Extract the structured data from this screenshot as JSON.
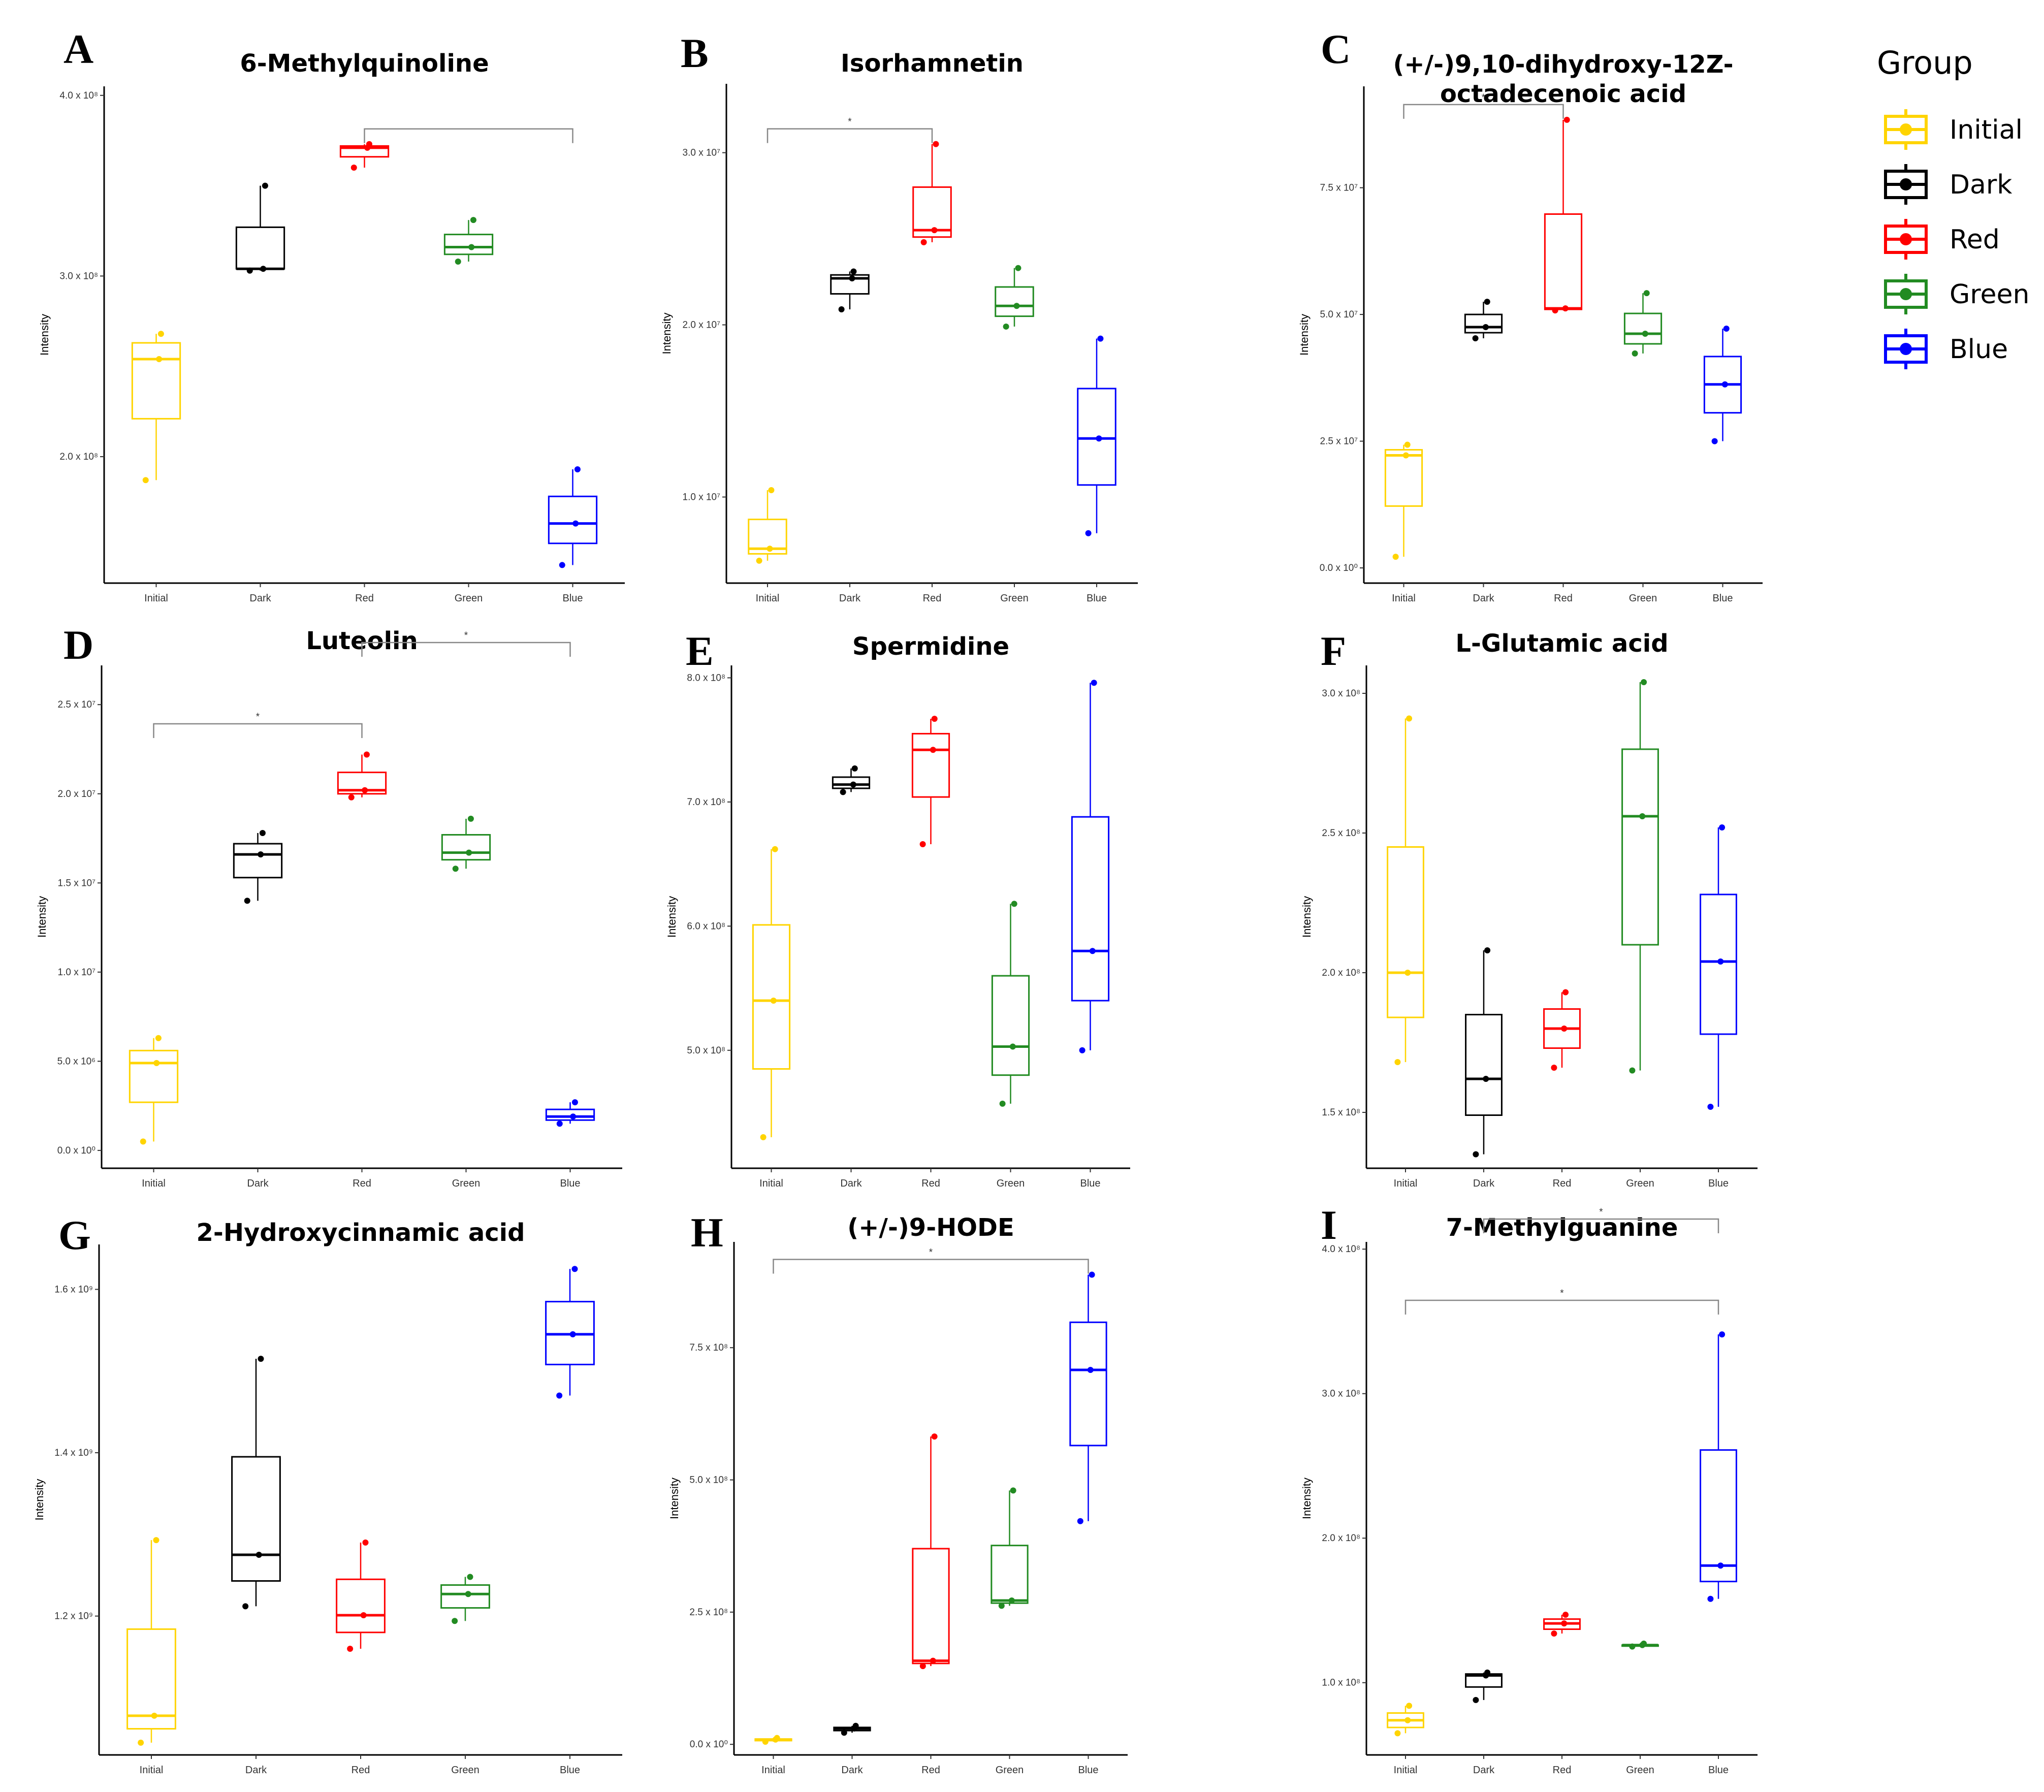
{
  "chart_data": [
    {
      "letter": "A",
      "title": [
        "6-Methylquinoline"
      ],
      "type": "box",
      "categories": [
        "Initial",
        "Dark",
        "Red",
        "Green",
        "Blue"
      ],
      "ylabel": "Intensity",
      "ylim": [
        130000000.0,
        405000000.0
      ],
      "yticks": [
        {
          "v": 200000000.0,
          "label": "2.0 x 10⁸"
        },
        {
          "v": 300000000.0,
          "label": "3.0 x 10⁸"
        },
        {
          "v": 400000000.0,
          "label": "4.0 x 10⁸"
        }
      ],
      "boxes": [
        {
          "min": 187000000.0,
          "q1": 221000000.0,
          "median": 254000000.0,
          "q3": 263000000.0,
          "max": 268000000.0,
          "points": [
            187000000.0,
            254000000.0,
            268000000.0
          ]
        },
        {
          "min": 303000000.0,
          "q1": 304000000.0,
          "median": 304000000.0,
          "q3": 327000000.0,
          "max": 350000000.0,
          "points": [
            303000000.0,
            304000000.0,
            350000000.0
          ]
        },
        {
          "min": 360000000.0,
          "q1": 366000000.0,
          "median": 371000000.0,
          "q3": 372000000.0,
          "max": 373000000.0,
          "points": [
            360000000.0,
            371000000.0,
            373000000.0
          ]
        },
        {
          "min": 308000000.0,
          "q1": 312000000.0,
          "median": 316000000.0,
          "q3": 323000000.0,
          "max": 331000000.0,
          "points": [
            308000000.0,
            316000000.0,
            331000000.0
          ]
        },
        {
          "min": 140000000.0,
          "q1": 152000000.0,
          "median": 163000000.0,
          "q3": 178000000.0,
          "max": 193000000.0,
          "points": [
            140000000.0,
            163000000.0,
            193000000.0
          ]
        }
      ],
      "sig": [
        {
          "from": 2,
          "to": 4,
          "label": "",
          "level": 0
        }
      ]
    },
    {
      "letter": "B",
      "title": [
        "Isorhamnetin"
      ],
      "type": "box",
      "categories": [
        "Initial",
        "Dark",
        "Red",
        "Green",
        "Blue"
      ],
      "ylabel": "Intensity",
      "ylim": [
        5000000.0,
        34000000.0
      ],
      "yticks": [
        {
          "v": 10000000.0,
          "label": "1.0 x 10⁷"
        },
        {
          "v": 20000000.0,
          "label": "2.0 x 10⁷"
        },
        {
          "v": 30000000.0,
          "label": "3.0 x 10⁷"
        }
      ],
      "boxes": [
        {
          "min": 6300000.0,
          "q1": 6700000.0,
          "median": 7000000.0,
          "q3": 8700000.0,
          "max": 10400000.0,
          "points": [
            6300000.0,
            7000000.0,
            10400000.0
          ]
        },
        {
          "min": 20900000.0,
          "q1": 21800000.0,
          "median": 22700000.0,
          "q3": 22900000.0,
          "max": 23100000.0,
          "points": [
            20900000.0,
            22700000.0,
            23100000.0
          ]
        },
        {
          "min": 24800000.0,
          "q1": 25100000.0,
          "median": 25500000.0,
          "q3": 28000000.0,
          "max": 30500000.0,
          "points": [
            24800000.0,
            25500000.0,
            30500000.0
          ]
        },
        {
          "min": 19900000.0,
          "q1": 20500000.0,
          "median": 21100000.0,
          "q3": 22200000.0,
          "max": 23300000.0,
          "points": [
            19900000.0,
            21100000.0,
            23300000.0
          ]
        },
        {
          "min": 7900000.0,
          "q1": 10700000.0,
          "median": 13400000.0,
          "q3": 16300000.0,
          "max": 19200000.0,
          "points": [
            7900000.0,
            13400000.0,
            19200000.0
          ]
        }
      ],
      "sig": [
        {
          "from": 0,
          "to": 2,
          "label": "*",
          "level": 0
        }
      ]
    },
    {
      "letter": "C",
      "title": [
        "(+/-)9,10-dihydroxy-12Z-",
        "octadecenoic acid"
      ],
      "type": "box",
      "categories": [
        "Initial",
        "Dark",
        "Red",
        "Green",
        "Blue"
      ],
      "ylabel": "Intensity",
      "ylim": [
        -3000000.0,
        95000000.0
      ],
      "yticks": [
        {
          "v": 0,
          "label": "0.0 x 10⁰"
        },
        {
          "v": 25000000.0,
          "label": "2.5 x 10⁷"
        },
        {
          "v": 50000000.0,
          "label": "5.0 x 10⁷"
        },
        {
          "v": 75000000.0,
          "label": "7.5 x 10⁷"
        }
      ],
      "boxes": [
        {
          "min": 2200000.0,
          "q1": 12200000.0,
          "median": 22200000.0,
          "q3": 23300000.0,
          "max": 24300000.0,
          "points": [
            2200000.0,
            22200000.0,
            24300000.0
          ]
        },
        {
          "min": 45300000.0,
          "q1": 46400000.0,
          "median": 47500000.0,
          "q3": 50000000.0,
          "max": 52500000.0,
          "points": [
            45300000.0,
            47500000.0,
            52500000.0
          ]
        },
        {
          "min": 50800000.0,
          "q1": 51000000.0,
          "median": 51200000.0,
          "q3": 69800000.0,
          "max": 88400000.0,
          "points": [
            50800000.0,
            51200000.0,
            88400000.0
          ]
        },
        {
          "min": 42300000.0,
          "q1": 44200000.0,
          "median": 46200000.0,
          "q3": 50200000.0,
          "max": 54200000.0,
          "points": [
            42300000.0,
            46200000.0,
            54200000.0
          ]
        },
        {
          "min": 25000000.0,
          "q1": 30600000.0,
          "median": 36200000.0,
          "q3": 41700000.0,
          "max": 47200000.0,
          "points": [
            25000000.0,
            36200000.0,
            47200000.0
          ]
        }
      ],
      "sig": [
        {
          "from": 0,
          "to": 2,
          "label": "*",
          "level": 0
        }
      ]
    },
    {
      "letter": "D",
      "title": [
        "Luteolin"
      ],
      "type": "box",
      "categories": [
        "Initial",
        "Dark",
        "Red",
        "Green",
        "Blue"
      ],
      "ylabel": "Intensity",
      "ylim": [
        -1000000.0,
        27200000.0
      ],
      "yticks": [
        {
          "v": 0,
          "label": "0.0 x 10⁰"
        },
        {
          "v": 5000000.0,
          "label": "5.0 x 10⁶"
        },
        {
          "v": 10000000.0,
          "label": "1.0 x 10⁷"
        },
        {
          "v": 15000000.0,
          "label": "1.5 x 10⁷"
        },
        {
          "v": 20000000.0,
          "label": "2.0 x 10⁷"
        },
        {
          "v": 25000000.0,
          "label": "2.5 x 10⁷"
        }
      ],
      "boxes": [
        {
          "min": 500000.0,
          "q1": 2700000.0,
          "median": 4900000.0,
          "q3": 5600000.0,
          "max": 6300000.0,
          "points": [
            500000.0,
            4900000.0,
            6300000.0
          ]
        },
        {
          "min": 14000000.0,
          "q1": 15300000.0,
          "median": 16600000.0,
          "q3": 17200000.0,
          "max": 17800000.0,
          "points": [
            14000000.0,
            16600000.0,
            17800000.0
          ]
        },
        {
          "min": 19800000.0,
          "q1": 20000000.0,
          "median": 20200000.0,
          "q3": 21200000.0,
          "max": 22200000.0,
          "points": [
            19800000.0,
            20200000.0,
            22200000.0
          ]
        },
        {
          "min": 15800000.0,
          "q1": 16300000.0,
          "median": 16700000.0,
          "q3": 17700000.0,
          "max": 18600000.0,
          "points": [
            15800000.0,
            16700000.0,
            18600000.0
          ]
        },
        {
          "min": 1500000.0,
          "q1": 1700000.0,
          "median": 1900000.0,
          "q3": 2300000.0,
          "max": 2700000.0,
          "points": [
            1500000.0,
            1900000.0,
            2700000.0
          ]
        }
      ],
      "sig": [
        {
          "from": 0,
          "to": 2,
          "label": "*",
          "level": 0
        },
        {
          "from": 2,
          "to": 4,
          "label": "*",
          "level": 1
        }
      ]
    },
    {
      "letter": "E",
      "title": [
        "Spermidine"
      ],
      "type": "box",
      "categories": [
        "Initial",
        "Dark",
        "Red",
        "Green",
        "Blue"
      ],
      "ylabel": "Intensity",
      "ylim": [
        405000000.0,
        810000000.0
      ],
      "yticks": [
        {
          "v": 500000000.0,
          "label": "5.0 x 10⁸"
        },
        {
          "v": 600000000.0,
          "label": "6.0 x 10⁸"
        },
        {
          "v": 700000000.0,
          "label": "7.0 x 10⁸"
        },
        {
          "v": 800000000.0,
          "label": "8.0 x 10⁸"
        }
      ],
      "boxes": [
        {
          "min": 430000000.0,
          "q1": 485000000.0,
          "median": 540000000.0,
          "q3": 601000000.0,
          "max": 662000000.0,
          "points": [
            430000000.0,
            540000000.0,
            662000000.0
          ]
        },
        {
          "min": 708000000.0,
          "q1": 711000000.0,
          "median": 714000000.0,
          "q3": 720000000.0,
          "max": 727000000.0,
          "points": [
            708000000.0,
            714000000.0,
            727000000.0
          ]
        },
        {
          "min": 666000000.0,
          "q1": 704000000.0,
          "median": 742000000.0,
          "q3": 755000000.0,
          "max": 767000000.0,
          "points": [
            666000000.0,
            742000000.0,
            767000000.0
          ]
        },
        {
          "min": 457000000.0,
          "q1": 480000000.0,
          "median": 503000000.0,
          "q3": 560000000.0,
          "max": 618000000.0,
          "points": [
            457000000.0,
            503000000.0,
            618000000.0
          ]
        },
        {
          "min": 500000000.0,
          "q1": 540000000.0,
          "median": 580000000.0,
          "q3": 688000000.0,
          "max": 796000000.0,
          "points": [
            500000000.0,
            580000000.0,
            796000000.0
          ]
        }
      ],
      "sig": []
    },
    {
      "letter": "F",
      "title": [
        "L-Glutamic acid"
      ],
      "type": "box",
      "categories": [
        "Initial",
        "Dark",
        "Red",
        "Green",
        "Blue"
      ],
      "ylabel": "Intensity",
      "ylim": [
        130000000.0,
        310000000.0
      ],
      "yticks": [
        {
          "v": 150000000.0,
          "label": "1.5 x 10⁸"
        },
        {
          "v": 200000000.0,
          "label": "2.0 x 10⁸"
        },
        {
          "v": 250000000.0,
          "label": "2.5 x 10⁸"
        },
        {
          "v": 300000000.0,
          "label": "3.0 x 10⁸"
        }
      ],
      "boxes": [
        {
          "min": 168000000.0,
          "q1": 184000000.0,
          "median": 200000000.0,
          "q3": 245000000.0,
          "max": 291000000.0,
          "points": [
            168000000.0,
            200000000.0,
            291000000.0
          ]
        },
        {
          "min": 135000000.0,
          "q1": 149000000.0,
          "median": 162000000.0,
          "q3": 185000000.0,
          "max": 208000000.0,
          "points": [
            135000000.0,
            162000000.0,
            208000000.0
          ]
        },
        {
          "min": 166000000.0,
          "q1": 173000000.0,
          "median": 180000000.0,
          "q3": 187000000.0,
          "max": 193000000.0,
          "points": [
            166000000.0,
            180000000.0,
            193000000.0
          ]
        },
        {
          "min": 165000000.0,
          "q1": 210000000.0,
          "median": 256000000.0,
          "q3": 280000000.0,
          "max": 304000000.0,
          "points": [
            165000000.0,
            256000000.0,
            304000000.0
          ]
        },
        {
          "min": 152000000.0,
          "q1": 178000000.0,
          "median": 204000000.0,
          "q3": 228000000.0,
          "max": 252000000.0,
          "points": [
            152000000.0,
            204000000.0,
            252000000.0
          ]
        }
      ],
      "sig": []
    },
    {
      "letter": "G",
      "title": [
        "2-Hydroxycinnamic acid"
      ],
      "type": "box",
      "categories": [
        "Initial",
        "Dark",
        "Red",
        "Green",
        "Blue"
      ],
      "ylabel": "Intensity",
      "ylim": [
        1030000000.0,
        1655000000.0
      ],
      "yticks": [
        {
          "v": 1200000000.0,
          "label": "1.2 x 10⁹"
        },
        {
          "v": 1400000000.0,
          "label": "1.4 x 10⁹"
        },
        {
          "v": 1600000000.0,
          "label": "1.6 x 10⁹"
        }
      ],
      "boxes": [
        {
          "min": 1045000000.0,
          "q1": 1062000000.0,
          "median": 1078000000.0,
          "q3": 1184000000.0,
          "max": 1293000000.0,
          "points": [
            1045000000.0,
            1078000000.0,
            1293000000.0
          ]
        },
        {
          "min": 1212000000.0,
          "q1": 1243000000.0,
          "median": 1275000000.0,
          "q3": 1395000000.0,
          "max": 1515000000.0,
          "points": [
            1212000000.0,
            1275000000.0,
            1515000000.0
          ]
        },
        {
          "min": 1160000000.0,
          "q1": 1180000000.0,
          "median": 1201000000.0,
          "q3": 1245000000.0,
          "max": 1290000000.0,
          "points": [
            1160000000.0,
            1201000000.0,
            1290000000.0
          ]
        },
        {
          "min": 1194000000.0,
          "q1": 1210000000.0,
          "median": 1227000000.0,
          "q3": 1238000000.0,
          "max": 1248000000.0,
          "points": [
            1194000000.0,
            1227000000.0,
            1248000000.0
          ]
        },
        {
          "min": 1470000000.0,
          "q1": 1508000000.0,
          "median": 1545000000.0,
          "q3": 1585000000.0,
          "max": 1625000000.0,
          "points": [
            1470000000.0,
            1545000000.0,
            1625000000.0
          ]
        }
      ],
      "sig": []
    },
    {
      "letter": "H",
      "title": [
        "(+/-)9-HODE"
      ],
      "type": "box",
      "categories": [
        "Initial",
        "Dark",
        "Red",
        "Green",
        "Blue"
      ],
      "ylabel": "Intensity",
      "ylim": [
        -20000000.0,
        950000000.0
      ],
      "yticks": [
        {
          "v": 0,
          "label": "0.0 x 10⁰"
        },
        {
          "v": 250000000.0,
          "label": "2.5 x 10⁸"
        },
        {
          "v": 500000000.0,
          "label": "5.0 x 10⁸"
        },
        {
          "v": 750000000.0,
          "label": "7.5 x 10⁸"
        }
      ],
      "boxes": [
        {
          "min": 5000000.0,
          "q1": 7000000.0,
          "median": 9000000.0,
          "q3": 10000000.0,
          "max": 12000000.0,
          "points": [
            5000000.0,
            9000000.0,
            12000000.0
          ]
        },
        {
          "min": 22000000.0,
          "q1": 26000000.0,
          "median": 30000000.0,
          "q3": 32000000.0,
          "max": 35000000.0,
          "points": [
            22000000.0,
            30000000.0,
            35000000.0
          ]
        },
        {
          "min": 148000000.0,
          "q1": 153000000.0,
          "median": 158000000.0,
          "q3": 370000000.0,
          "max": 582000000.0,
          "points": [
            148000000.0,
            158000000.0,
            582000000.0
          ]
        },
        {
          "min": 262000000.0,
          "q1": 267000000.0,
          "median": 272000000.0,
          "q3": 376000000.0,
          "max": 480000000.0,
          "points": [
            262000000.0,
            272000000.0,
            480000000.0
          ]
        },
        {
          "min": 422000000.0,
          "q1": 565000000.0,
          "median": 708000000.0,
          "q3": 798000000.0,
          "max": 888000000.0,
          "points": [
            422000000.0,
            708000000.0,
            888000000.0
          ]
        }
      ],
      "sig": [
        {
          "from": 0,
          "to": 4,
          "label": "*",
          "level": 0
        }
      ]
    },
    {
      "letter": "I",
      "title": [
        "7-Methylguanine"
      ],
      "type": "box",
      "categories": [
        "Initial",
        "Dark",
        "Red",
        "Green",
        "Blue"
      ],
      "ylabel": "Intensity",
      "ylim": [
        50000000.0,
        405000000.0
      ],
      "yticks": [
        {
          "v": 100000000.0,
          "label": "1.0 x 10⁸"
        },
        {
          "v": 200000000.0,
          "label": "2.0 x 10⁸"
        },
        {
          "v": 300000000.0,
          "label": "3.0 x 10⁸"
        },
        {
          "v": 400000000.0,
          "label": "4.0 x 10⁸"
        }
      ],
      "boxes": [
        {
          "min": 65000000.0,
          "q1": 69000000.0,
          "median": 74000000.0,
          "q3": 79000000.0,
          "max": 84000000.0,
          "points": [
            65000000.0,
            74000000.0,
            84000000.0
          ]
        },
        {
          "min": 88000000.0,
          "q1": 97000000.0,
          "median": 105000000.0,
          "q3": 106000000.0,
          "max": 107000000.0,
          "points": [
            88000000.0,
            105000000.0,
            107000000.0
          ]
        },
        {
          "min": 134000000.0,
          "q1": 137000000.0,
          "median": 141000000.0,
          "q3": 144000000.0,
          "max": 147000000.0,
          "points": [
            134000000.0,
            141000000.0,
            147000000.0
          ]
        },
        {
          "min": 125000000.0,
          "q1": 126000000.0,
          "median": 126000000.0,
          "q3": 126000000.0,
          "max": 127000000.0,
          "points": [
            125000000.0,
            126000000.0,
            127000000.0
          ]
        },
        {
          "min": 158000000.0,
          "q1": 170000000.0,
          "median": 181000000.0,
          "q3": 261000000.0,
          "max": 341000000.0,
          "points": [
            158000000.0,
            181000000.0,
            341000000.0
          ]
        }
      ],
      "sig": [
        {
          "from": 0,
          "to": 4,
          "label": "*",
          "level": 0
        },
        {
          "from": 1,
          "to": 4,
          "label": "*",
          "level": 1
        }
      ]
    }
  ],
  "legend": {
    "title": "Group",
    "items": [
      {
        "label": "Initial",
        "color": "#FFD400"
      },
      {
        "label": "Dark",
        "color": "#000000"
      },
      {
        "label": "Red",
        "color": "#FF0000"
      },
      {
        "label": "Green",
        "color": "#228B22"
      },
      {
        "label": "Blue",
        "color": "#0000FF"
      }
    ]
  }
}
